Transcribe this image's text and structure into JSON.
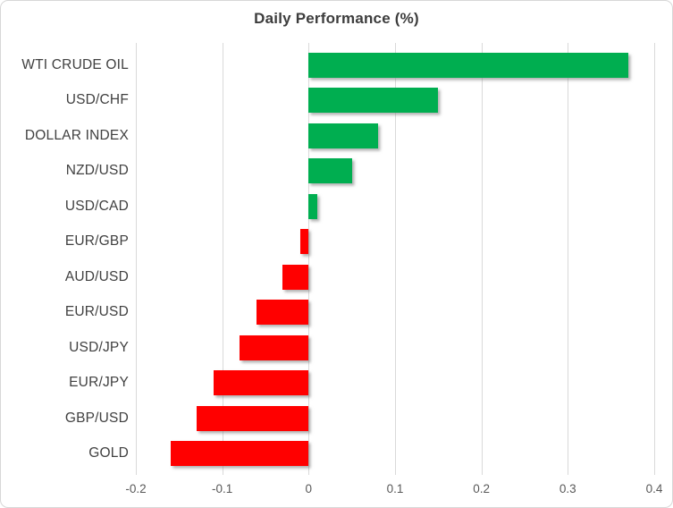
{
  "chart_data": {
    "type": "bar",
    "orientation": "horizontal",
    "title": "Daily Performance (%)",
    "categories": [
      "WTI CRUDE OIL",
      "USD/CHF",
      "DOLLAR INDEX",
      "NZD/USD",
      "USD/CAD",
      "EUR/GBP",
      "AUD/USD",
      "EUR/USD",
      "USD/JPY",
      "EUR/JPY",
      "GBP/USD",
      "GOLD"
    ],
    "values": [
      0.37,
      0.15,
      0.08,
      0.05,
      0.01,
      -0.01,
      -0.03,
      -0.06,
      -0.08,
      -0.11,
      -0.13,
      -0.16
    ],
    "xlabel": "",
    "ylabel": "",
    "xlim": [
      -0.2,
      0.4
    ],
    "x_ticks": [
      -0.2,
      -0.1,
      0,
      0.1,
      0.2,
      0.3,
      0.4
    ],
    "x_tick_labels": [
      "-0.2",
      "-0.1",
      "0",
      "0.1",
      "0.2",
      "0.3",
      "0.4"
    ],
    "grid": "vertical-only",
    "legend": "none",
    "colors": {
      "positive_bar": "#00AE50",
      "negative_bar": "#FF0000",
      "gridline": "#D9D9D9",
      "title_text": "#3D3D3D",
      "category_text": "#404040",
      "tick_text": "#595959",
      "frame_border": "#D7D7D7",
      "background": "#FFFFFF"
    }
  }
}
